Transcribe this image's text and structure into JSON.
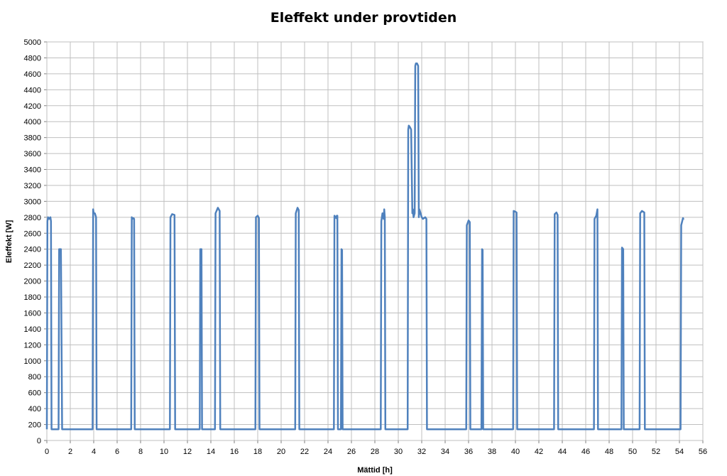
{
  "chart_data": {
    "type": "line",
    "title": "Eleffekt under provtiden",
    "xlabel": "Mättid [h]",
    "ylabel": "Eleffekt [W]",
    "xlim": [
      0,
      56
    ],
    "ylim": [
      0,
      5000
    ],
    "x_ticks": [
      0,
      2,
      4,
      6,
      8,
      10,
      12,
      14,
      16,
      18,
      20,
      22,
      24,
      26,
      28,
      30,
      32,
      34,
      36,
      38,
      40,
      42,
      44,
      46,
      48,
      50,
      52,
      54,
      56
    ],
    "y_ticks": [
      0,
      200,
      400,
      600,
      800,
      1000,
      1200,
      1400,
      1600,
      1800,
      2000,
      2200,
      2400,
      2600,
      2800,
      3000,
      3200,
      3400,
      3600,
      3800,
      4000,
      4200,
      4400,
      4600,
      4800,
      5000
    ],
    "grid": true,
    "legend": "none",
    "series": [
      {
        "color": "#4f81bd",
        "x": [
          0.0,
          0.05,
          0.1,
          0.2,
          0.3,
          0.35,
          0.4,
          1.0,
          1.05,
          1.1,
          1.2,
          1.3,
          3.9,
          3.95,
          4.0,
          4.1,
          4.2,
          4.25,
          7.2,
          7.25,
          7.3,
          7.4,
          7.45,
          7.5,
          10.5,
          10.55,
          10.7,
          10.9,
          10.95,
          13.05,
          13.1,
          13.2,
          13.25,
          14.35,
          14.4,
          14.6,
          14.75,
          14.8,
          17.8,
          17.85,
          18.0,
          18.1,
          18.15,
          21.2,
          21.25,
          21.4,
          21.5,
          21.55,
          24.5,
          24.55,
          24.7,
          24.75,
          24.8,
          24.85,
          25.1,
          25.15,
          25.2,
          25.25,
          28.5,
          28.55,
          28.65,
          28.75,
          28.8,
          28.85,
          28.9,
          30.8,
          30.85,
          30.9,
          31.0,
          31.1,
          31.2,
          31.25,
          31.3,
          31.4,
          31.45,
          31.5,
          31.6,
          31.7,
          31.75,
          31.8,
          31.9,
          32.0,
          32.1,
          32.3,
          32.4,
          32.45,
          35.8,
          35.85,
          36.0,
          36.1,
          36.15,
          37.1,
          37.15,
          37.2,
          37.25,
          39.8,
          39.85,
          40.0,
          40.1,
          40.15,
          43.3,
          43.35,
          43.5,
          43.6,
          43.65,
          46.7,
          46.75,
          46.9,
          47.0,
          47.05,
          49.05,
          49.1,
          49.2,
          49.25,
          50.6,
          50.65,
          50.8,
          51.0,
          51.05,
          54.1,
          54.15,
          54.3,
          54.35
        ],
        "y": [
          140,
          2750,
          2800,
          2780,
          2800,
          2750,
          140,
          140,
          2400,
          2400,
          2400,
          140,
          140,
          2900,
          2850,
          2850,
          2800,
          140,
          140,
          2800,
          2780,
          2790,
          2780,
          140,
          140,
          2800,
          2840,
          2830,
          140,
          140,
          2400,
          2400,
          140,
          140,
          2850,
          2920,
          2880,
          140,
          140,
          2800,
          2820,
          2790,
          140,
          140,
          2850,
          2920,
          2890,
          140,
          140,
          2820,
          2790,
          2820,
          2820,
          140,
          140,
          2400,
          2390,
          140,
          140,
          2750,
          2850,
          2780,
          2900,
          2800,
          140,
          140,
          3900,
          3950,
          3930,
          3900,
          2850,
          2900,
          2800,
          2850,
          4700,
          4730,
          4730,
          4700,
          2800,
          2900,
          2850,
          2800,
          2780,
          2800,
          2780,
          140,
          140,
          2700,
          2760,
          2740,
          140,
          140,
          2400,
          2390,
          140,
          140,
          2880,
          2870,
          2860,
          140,
          140,
          2840,
          2860,
          2830,
          140,
          140,
          2780,
          2820,
          2900,
          140,
          140,
          2420,
          2400,
          140,
          140,
          2850,
          2880,
          2860,
          140,
          140,
          2700,
          2790,
          2770
        ]
      }
    ]
  }
}
